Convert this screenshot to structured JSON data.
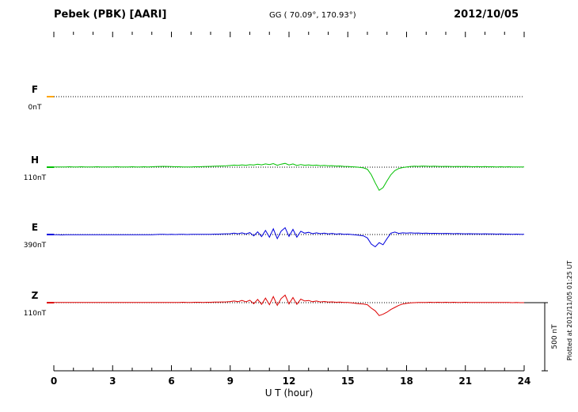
{
  "chart_data": {
    "type": "line",
    "title": "Pebek (PBK)  [AARI]",
    "coordinates": "GG ( 70.09°, 170.93°)",
    "date": "2012/10/05",
    "xlabel": "U T (hour)",
    "xlim": [
      0,
      24
    ],
    "x_ticks": [
      0,
      3,
      6,
      9,
      12,
      15,
      18,
      21,
      24
    ],
    "x_start": 0,
    "x_step_hours": 0.2,
    "unit": "nT",
    "grid": "dotted horizontal baselines per component",
    "scale_bar": {
      "label": "500 nT",
      "value_nT": 500
    },
    "footnote": "Plotted at 2012/11/05 01:25 UT",
    "series": [
      {
        "name": "F",
        "offset_label": "0nT",
        "color": "#FFA500",
        "values": []
      },
      {
        "name": "H",
        "offset_label": "110nT",
        "color": "#00C000",
        "values": [
          2,
          2,
          1,
          2,
          3,
          2,
          2,
          3,
          2,
          2,
          2,
          3,
          2,
          1,
          2,
          2,
          3,
          2,
          2,
          2,
          3,
          2,
          2,
          3,
          2,
          3,
          4,
          5,
          6,
          5,
          4,
          3,
          3,
          2,
          2,
          2,
          3,
          3,
          4,
          5,
          6,
          7,
          8,
          9,
          10,
          12,
          15,
          13,
          17,
          14,
          18,
          16,
          22,
          17,
          24,
          19,
          26,
          14,
          22,
          28,
          16,
          24,
          12,
          19,
          14,
          17,
          13,
          15,
          11,
          13,
          10,
          11,
          8,
          9,
          6,
          5,
          3,
          1,
          -2,
          -5,
          -15,
          -55,
          -115,
          -170,
          -150,
          -100,
          -55,
          -25,
          -10,
          -3,
          2,
          5,
          7,
          6,
          8,
          7,
          6,
          7,
          6,
          5,
          6,
          5,
          4,
          5,
          4,
          5,
          4,
          3,
          4,
          3,
          4,
          3,
          3,
          2,
          3,
          2,
          3,
          2,
          2,
          2,
          2
        ]
      },
      {
        "name": "E",
        "offset_label": "390nT",
        "color": "#0000DD",
        "values": [
          -2,
          -2,
          -3,
          -2,
          -2,
          -1,
          -2,
          -2,
          -1,
          -2,
          -2,
          -1,
          -2,
          -2,
          -1,
          -1,
          -2,
          -1,
          -1,
          -2,
          -1,
          -1,
          -1,
          -2,
          -1,
          -1,
          0,
          1,
          1,
          0,
          1,
          0,
          1,
          1,
          0,
          1,
          1,
          2,
          1,
          2,
          2,
          3,
          3,
          4,
          5,
          6,
          10,
          5,
          12,
          4,
          14,
          -10,
          20,
          -15,
          30,
          -20,
          42,
          -30,
          25,
          50,
          -14,
          38,
          -20,
          24,
          10,
          16,
          6,
          12,
          6,
          10,
          4,
          8,
          3,
          6,
          2,
          3,
          0,
          -3,
          -6,
          -10,
          -25,
          -70,
          -90,
          -60,
          -75,
          -30,
          10,
          18,
          8,
          12,
          10,
          12,
          10,
          11,
          9,
          10,
          8,
          9,
          8,
          7,
          8,
          7,
          6,
          7,
          6,
          5,
          6,
          5,
          5,
          4,
          5,
          4,
          4,
          3,
          4,
          3,
          3,
          2,
          3,
          2,
          2
        ]
      },
      {
        "name": "Z",
        "offset_label": "110nT",
        "color": "#DD0000",
        "values": [
          1,
          1,
          2,
          1,
          1,
          2,
          1,
          1,
          1,
          2,
          1,
          1,
          2,
          1,
          1,
          1,
          2,
          1,
          1,
          1,
          2,
          1,
          1,
          1,
          2,
          1,
          2,
          1,
          2,
          2,
          1,
          2,
          2,
          3,
          2,
          2,
          3,
          3,
          2,
          3,
          3,
          4,
          4,
          5,
          6,
          8,
          12,
          7,
          16,
          6,
          18,
          -8,
          24,
          -12,
          34,
          -15,
          45,
          -20,
          30,
          55,
          -10,
          38,
          -12,
          26,
          12,
          16,
          7,
          12,
          5,
          9,
          4,
          6,
          3,
          4,
          2,
          2,
          -2,
          -5,
          -8,
          -10,
          -15,
          -40,
          -60,
          -95,
          -85,
          -70,
          -50,
          -35,
          -20,
          -10,
          -5,
          -2,
          0,
          1,
          2,
          1,
          3,
          2,
          3,
          2,
          3,
          2,
          3,
          2,
          2,
          3,
          2,
          2,
          1,
          2,
          1,
          2,
          1,
          1,
          2,
          1,
          1,
          0,
          1,
          0,
          0
        ]
      }
    ]
  }
}
